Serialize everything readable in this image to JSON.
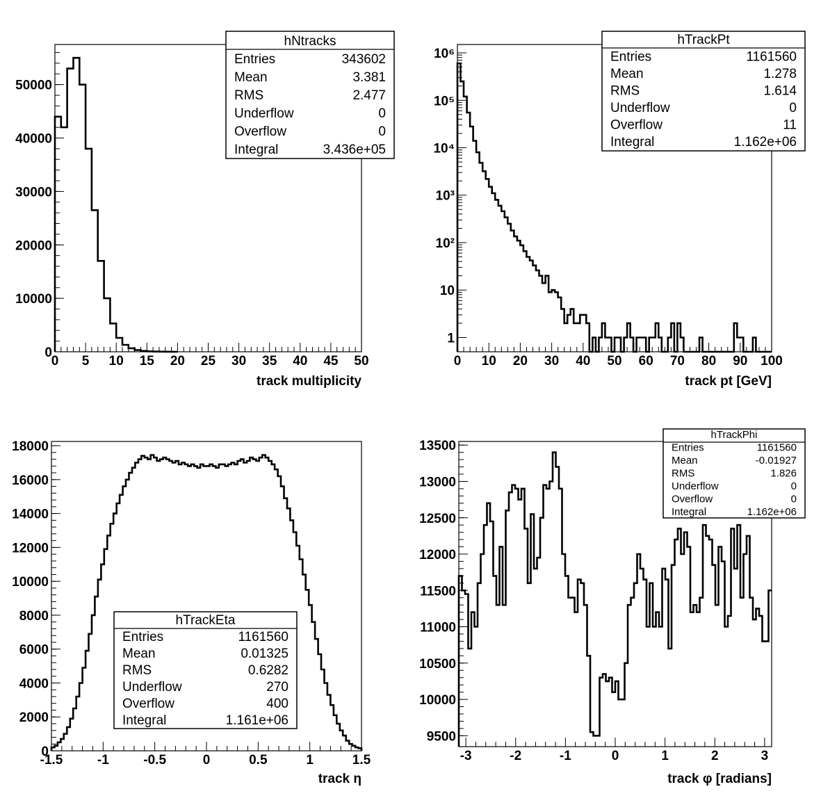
{
  "chart_data": [
    {
      "type": "histogram",
      "xlabel": "track multiplicity",
      "xlim": [
        0,
        50
      ],
      "ylim": [
        0,
        57500
      ],
      "xticks": [
        "0",
        "5",
        "10",
        "15",
        "20",
        "25",
        "30",
        "35",
        "40",
        "45",
        "50"
      ],
      "yticks": [
        "0",
        "10000",
        "20000",
        "30000",
        "40000",
        "50000"
      ],
      "x_edges_start": 0,
      "bin_width": 1,
      "values": [
        44000,
        42000,
        53000,
        55000,
        50000,
        38000,
        26500,
        17000,
        10000,
        5300,
        2600,
        1300,
        650,
        320,
        160,
        80,
        40,
        20,
        10,
        5
      ],
      "stats": {
        "title": "hNtracks",
        "rows": [
          {
            "label": "Entries",
            "value": "343602"
          },
          {
            "label": "Mean",
            "value": "3.381"
          },
          {
            "label": "RMS",
            "value": "2.477"
          },
          {
            "label": "Underflow",
            "value": "0"
          },
          {
            "label": "Overflow",
            "value": "0"
          },
          {
            "label": "Integral",
            "value": "3.436e+05"
          }
        ]
      }
    },
    {
      "type": "histogram",
      "yscale": "log",
      "xlabel": "track pt [GeV]",
      "xlim": [
        0,
        100
      ],
      "ylim": [
        0.5,
        1500000
      ],
      "xticks": [
        "0",
        "10",
        "20",
        "30",
        "40",
        "50",
        "60",
        "70",
        "80",
        "90",
        "100"
      ],
      "yticks": [
        "1",
        "10",
        "10²",
        "10³",
        "10⁴",
        "10⁵",
        "10⁶"
      ],
      "x_edges_start": 0,
      "bin_width": 1,
      "values": [
        600000,
        250000,
        120000,
        55000,
        28000,
        14000,
        8000,
        4800,
        3200,
        2200,
        1500,
        1100,
        800,
        600,
        460,
        340,
        250,
        180,
        135,
        110,
        88,
        66,
        50,
        42,
        33,
        26,
        20,
        14,
        20,
        9,
        10,
        9,
        7,
        4,
        2,
        3,
        4,
        2,
        2,
        3,
        3,
        2,
        0,
        1,
        0,
        1,
        2,
        1,
        1,
        0,
        1,
        1,
        0,
        1,
        2,
        1,
        0,
        1,
        1,
        1,
        0,
        1,
        1,
        2,
        1,
        0,
        0,
        1,
        2,
        0,
        2,
        1,
        0,
        0,
        0,
        0,
        0,
        1,
        0,
        0,
        0,
        0,
        0,
        0,
        0,
        0,
        0,
        0,
        2,
        1,
        1,
        0,
        0,
        0,
        1,
        0,
        0,
        0,
        0,
        0
      ],
      "stats": {
        "title": "hTrackPt",
        "rows": [
          {
            "label": "Entries",
            "value": "1161560"
          },
          {
            "label": "Mean",
            "value": "1.278"
          },
          {
            "label": "RMS",
            "value": "1.614"
          },
          {
            "label": "Underflow",
            "value": "0"
          },
          {
            "label": "Overflow",
            "value": "11"
          },
          {
            "label": "Integral",
            "value": "1.162e+06"
          }
        ]
      }
    },
    {
      "type": "histogram",
      "xlabel": "track η",
      "xlim": [
        -1.5,
        1.5
      ],
      "ylim": [
        0,
        18250
      ],
      "xticks": [
        "-1.5",
        "-1",
        "-0.5",
        "0",
        "0.5",
        "1",
        "1.5"
      ],
      "yticks": [
        "0",
        "2000",
        "4000",
        "6000",
        "8000",
        "10000",
        "12000",
        "14000",
        "16000",
        "18000"
      ],
      "x_edges_start": -1.5,
      "bin_width": 0.03,
      "values": [
        200,
        300,
        500,
        700,
        1000,
        1400,
        1900,
        2500,
        3200,
        4000,
        4900,
        5900,
        6900,
        8000,
        9100,
        10100,
        11000,
        11900,
        12700,
        13400,
        14000,
        14600,
        15100,
        15600,
        16000,
        16400,
        16700,
        17000,
        17200,
        17400,
        17300,
        17200,
        17450,
        17300,
        17100,
        17200,
        17300,
        17200,
        17100,
        17000,
        17100,
        16900,
        17000,
        16900,
        16800,
        16900,
        16800,
        16700,
        16900,
        16800,
        16800,
        16900,
        16800,
        16700,
        16900,
        16900,
        16800,
        16900,
        17000,
        16900,
        17100,
        17200,
        17000,
        17100,
        17300,
        17200,
        17100,
        17300,
        17450,
        17300,
        17100,
        16900,
        16600,
        16200,
        15600,
        14900,
        14300,
        13600,
        12900,
        12100,
        11300,
        10400,
        9500,
        8600,
        7600,
        6600,
        5700,
        4800,
        4000,
        3300,
        2700,
        2100,
        1600,
        1200,
        900,
        600,
        400,
        300,
        200,
        150
      ],
      "stats": {
        "title": "hTrackEta",
        "rows": [
          {
            "label": "Entries",
            "value": "1161560"
          },
          {
            "label": "Mean",
            "value": "0.01325"
          },
          {
            "label": "RMS",
            "value": "0.6282"
          },
          {
            "label": "Underflow",
            "value": "270"
          },
          {
            "label": "Overflow",
            "value": "400"
          },
          {
            "label": "Integral",
            "value": "1.161e+06"
          }
        ]
      }
    },
    {
      "type": "histogram",
      "xlabel": "track φ [radians]",
      "xlim": [
        -3.1416,
        3.1416
      ],
      "ylim": [
        9350,
        13550
      ],
      "xticks": [
        "-3",
        "-2",
        "-1",
        "0",
        "1",
        "2",
        "3"
      ],
      "yticks": [
        "9500",
        "10000",
        "10500",
        "11000",
        "11500",
        "12000",
        "12500",
        "13000",
        "13500"
      ],
      "x_edges_start": -3.1416,
      "bin_width": 0.062832,
      "values": [
        11700,
        11500,
        11450,
        10700,
        11200,
        11000,
        11600,
        12000,
        12400,
        12700,
        12450,
        11700,
        11300,
        12100,
        11300,
        12600,
        12850,
        12950,
        12900,
        12750,
        12900,
        12350,
        11600,
        12550,
        11800,
        11950,
        12500,
        12950,
        12900,
        13000,
        13400,
        13200,
        12900,
        12000,
        11700,
        11400,
        11400,
        11200,
        11650,
        11600,
        11300,
        10600,
        9550,
        9500,
        9500,
        10300,
        10350,
        10250,
        10300,
        10100,
        10250,
        10000,
        10000,
        10500,
        11300,
        11400,
        11600,
        12000,
        11800,
        11650,
        11000,
        11600,
        11000,
        11200,
        11000,
        11800,
        11650,
        10700,
        11850,
        12200,
        12350,
        12000,
        12300,
        12100,
        11200,
        11300,
        11200,
        11400,
        12400,
        12250,
        12200,
        11850,
        11300,
        12100,
        11900,
        11000,
        11150,
        12350,
        11800,
        12400,
        11400,
        12000,
        12250,
        11400,
        11100,
        11250,
        11150,
        10800,
        10800,
        11500
      ],
      "stats": {
        "title": "hTrackPhi",
        "rows": [
          {
            "label": "Entries",
            "value": "1161560"
          },
          {
            "label": "Mean",
            "value": "-0.01927"
          },
          {
            "label": "RMS",
            "value": "1.826"
          },
          {
            "label": "Underflow",
            "value": "0"
          },
          {
            "label": "Overflow",
            "value": "0"
          },
          {
            "label": "Integral",
            "value": "1.162e+06"
          }
        ]
      }
    }
  ]
}
